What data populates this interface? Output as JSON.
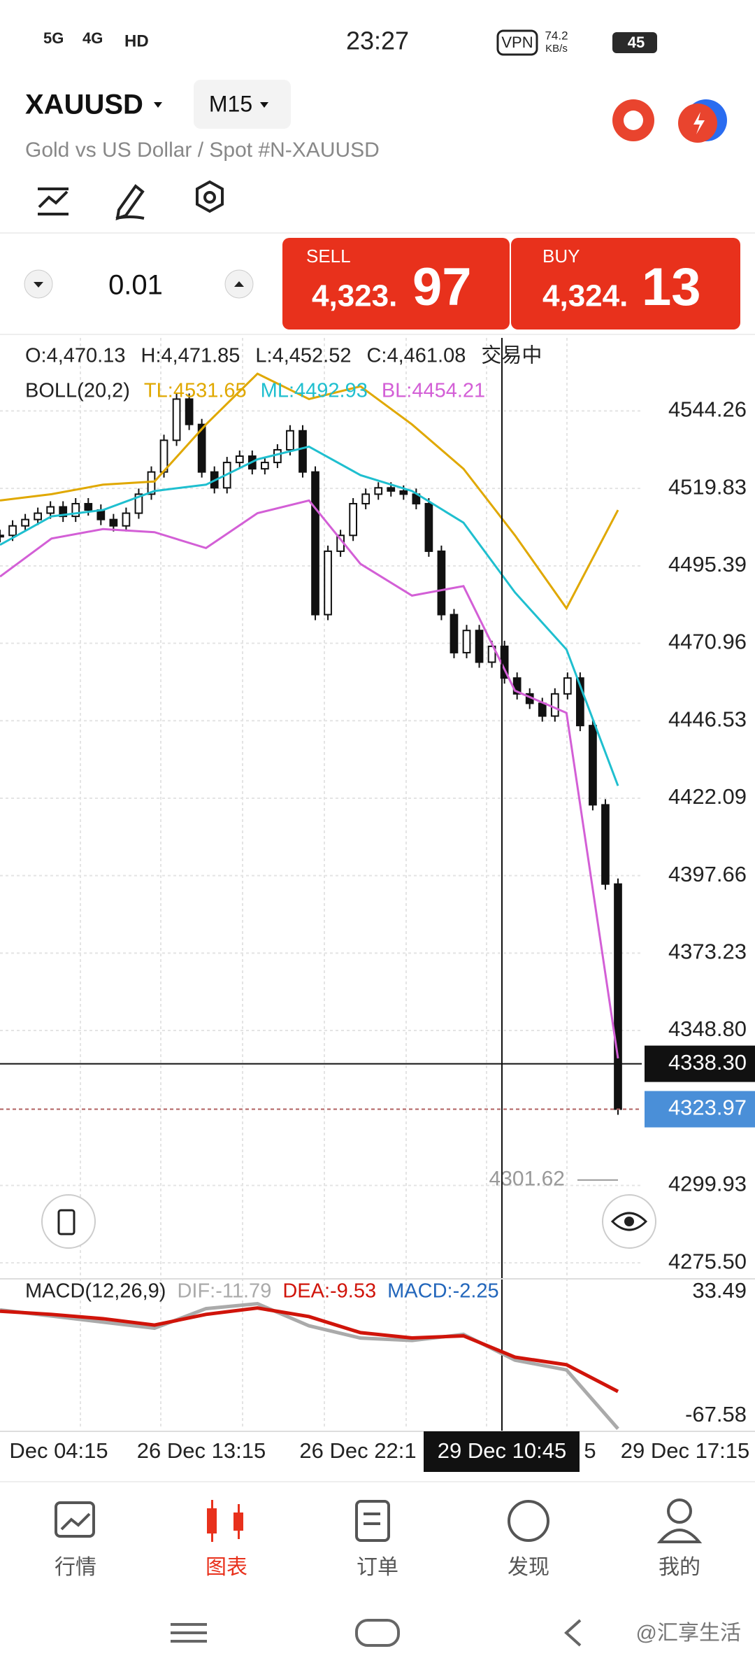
{
  "status_bar": {
    "network1": "5G",
    "network2": "4G",
    "hd": "HD",
    "time": "23:27",
    "vpn": "VPN",
    "speed": "74.2",
    "speed_unit": "KB/s",
    "battery": "45"
  },
  "header": {
    "symbol": "XAUUSD",
    "timeframe": "M15",
    "subtitle": "Gold vs US Dollar / Spot #N-XAUUSD"
  },
  "trade": {
    "volume": "0.01",
    "sell_label": "SELL",
    "sell_price_main": "4,323.",
    "sell_price_big": "97",
    "buy_label": "BUY",
    "buy_price_main": "4,324.",
    "buy_price_big": "13"
  },
  "chart": {
    "type": "candlestick",
    "ohlc_info": [
      "O:4,470.13",
      "H:4,471.85",
      "L:4,452.52",
      "C:4,461.08",
      "交易中"
    ],
    "boll_label": "BOLL(20,2)",
    "boll": [
      {
        "name": "TL:4531.65",
        "color": "#e0a800",
        "values": [
          4516,
          4518,
          4521,
          4522,
          4540,
          4556,
          4548,
          4552,
          4540,
          4526,
          4505,
          4482,
          4513
        ]
      },
      {
        "name": "ML:4492.93",
        "color": "#1fbfcf",
        "values": [
          4502,
          4511,
          4513,
          4519,
          4521,
          4529,
          4533,
          4524,
          4519,
          4509,
          4487,
          4469,
          4426
        ]
      },
      {
        "name": "BL:4454.21",
        "color": "#d35fd6",
        "values": [
          4492,
          4504,
          4507,
          4506,
          4501,
          4512,
          4516,
          4496,
          4486,
          4489,
          4456,
          4449,
          4340
        ]
      }
    ],
    "closes": [
      4505,
      4508,
      4510,
      4512,
      4514,
      4511,
      4515,
      4513,
      4510,
      4508,
      4512,
      4518,
      4525,
      4535,
      4548,
      4540,
      4525,
      4520,
      4528,
      4530,
      4526,
      4528,
      4532,
      4538,
      4525,
      4480,
      4500,
      4505,
      4515,
      4518,
      4520,
      4519,
      4518,
      4515,
      4500,
      4480,
      4468,
      4475,
      4465,
      4470,
      4460,
      4455,
      4452,
      4448,
      4455,
      4460,
      4445,
      4420,
      4395,
      4323.97
    ],
    "ylim": [
      4272,
      4567.3
    ],
    "yticks": [
      4544.26,
      4519.83,
      4495.39,
      4470.96,
      4446.53,
      4422.09,
      4397.66,
      4373.23,
      {
        "value": 4348.8,
        "label": "4348.80"
      },
      4299.93,
      {
        "value": 4275.5,
        "label": "4275.50"
      }
    ],
    "crosshair_price": {
      "value": 4338.3,
      "label": "4338.30"
    },
    "current_price": 4323.97,
    "low_marker": 4301.62,
    "time_labels": [
      "Dec 04:15",
      "26 Dec 13:15",
      "26 Dec 22:1",
      "29 Dec 10:45",
      "5",
      "29 Dec 17:15"
    ],
    "macd": {
      "label": "MACD(12,26,9)",
      "dif_label": "DIF:-11.79",
      "dea_label": "DEA:-9.53",
      "macd_label": "MACD:-2.25",
      "ylim": [
        -78.4,
        44.3
      ],
      "yticks": [
        33.49,
        -67.58
      ],
      "dif": [
        19,
        14,
        9,
        4,
        20,
        24,
        6,
        -4,
        -6,
        -1,
        -22,
        -30,
        -78
      ],
      "dea": [
        17.9,
        15.3,
        11.8,
        6.6,
        15.3,
        20.5,
        13.5,
        0.4,
        -3.9,
        -2.2,
        -19.6,
        -25.8,
        -47.6
      ]
    }
  },
  "bottom_nav": [
    "行情",
    "图表",
    "订单",
    "发现",
    "我的"
  ],
  "watermark": "@汇享生活"
}
